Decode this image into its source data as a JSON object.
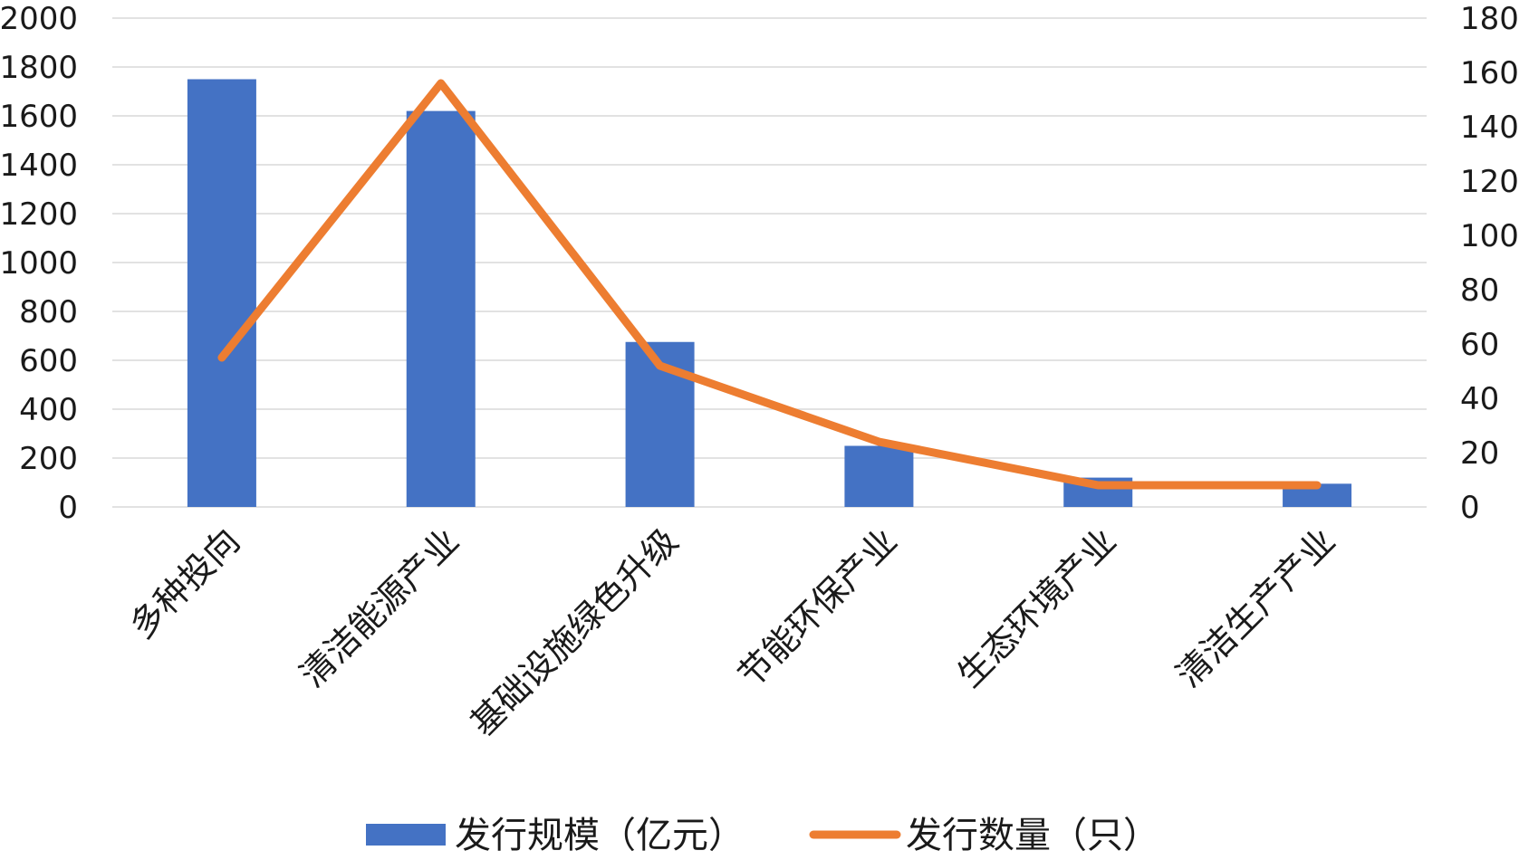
{
  "chart_data": {
    "type": "bar+line",
    "categories": [
      "多种投向",
      "清洁能源产业",
      "基础设施绿色升级",
      "节能环保产业",
      "生态环境产业",
      "清洁生产产业"
    ],
    "series": [
      {
        "name": "发行规模（亿元）",
        "type": "bar",
        "axis": "left",
        "values": [
          1750,
          1620,
          675,
          250,
          120,
          95
        ]
      },
      {
        "name": "发行数量（只）",
        "type": "line",
        "axis": "right",
        "values": [
          55,
          156,
          52,
          24,
          8,
          8
        ]
      }
    ],
    "y_left": {
      "range": [
        0,
        2000
      ],
      "ticks": [
        "0",
        "200",
        "400",
        "600",
        "800",
        "1000",
        "1200",
        "1400",
        "1600",
        "1800",
        "2000"
      ]
    },
    "y_right": {
      "range": [
        0,
        180
      ],
      "ticks": [
        "0",
        "20",
        "40",
        "60",
        "80",
        "100",
        "120",
        "140",
        "160",
        "180"
      ]
    },
    "grid": true,
    "legend_position": "bottom",
    "colors": {
      "bar": "#4472c4",
      "line": "#ed7d31",
      "grid": "#d9d9d9"
    }
  }
}
